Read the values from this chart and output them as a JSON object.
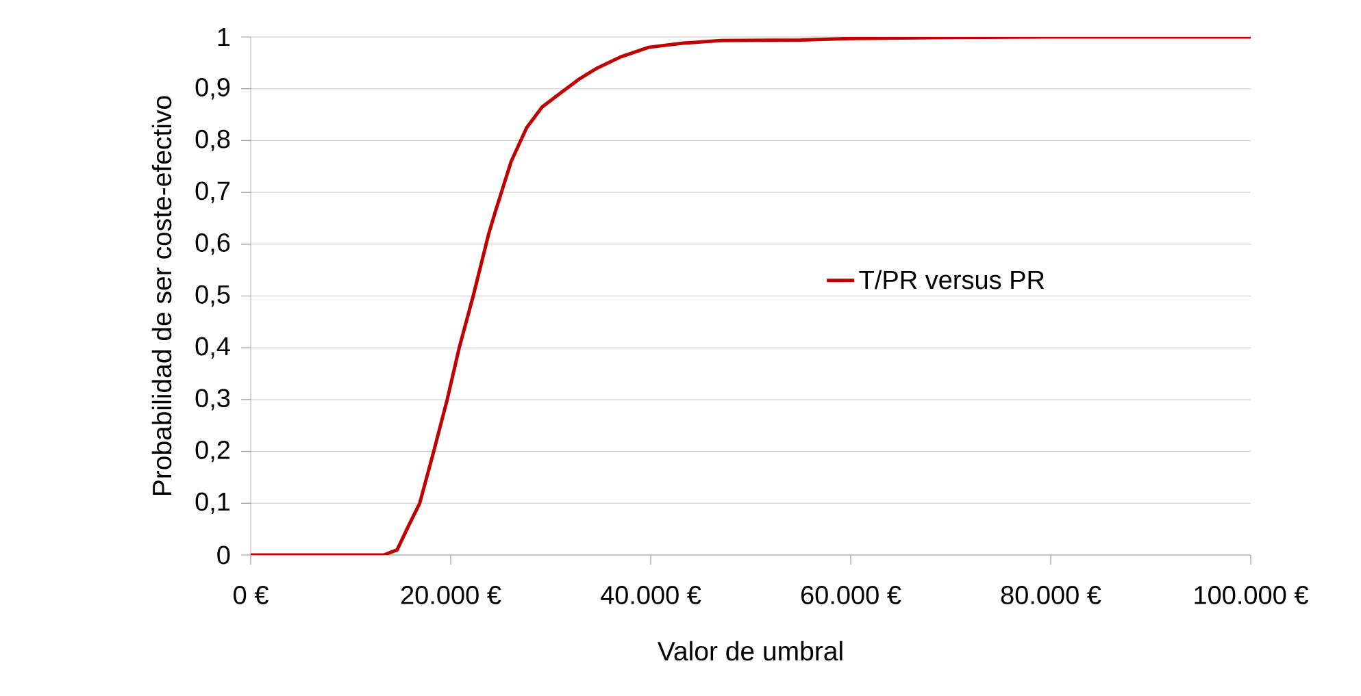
{
  "chart_data": {
    "type": "line",
    "xlabel": "Valor de umbral",
    "ylabel": "Probabilidad de ser coste-efectivo",
    "x": [
      0,
      5000,
      10000,
      13300,
      14650,
      15700,
      16900,
      18300,
      19650,
      20850,
      22250,
      23800,
      24500,
      26050,
      27600,
      29150,
      31200,
      32950,
      34650,
      37050,
      39800,
      43250,
      47000,
      55000,
      60000,
      70000,
      80000,
      100000
    ],
    "series": [
      {
        "name": "T/PR versus PR",
        "color": "#c00000",
        "values": [
          0,
          0,
          0,
          0,
          0.01,
          0.053,
          0.1,
          0.2,
          0.3,
          0.4,
          0.5,
          0.62,
          0.665,
          0.76,
          0.825,
          0.865,
          0.895,
          0.92,
          0.94,
          0.962,
          0.98,
          0.988,
          0.993,
          0.994,
          0.997,
          0.999,
          1,
          1
        ]
      }
    ],
    "xlim": [
      0,
      100000
    ],
    "ylim": [
      0,
      1
    ],
    "xticks": [
      {
        "value": 0,
        "label": "0 €"
      },
      {
        "value": 20000,
        "label": "20.000 €"
      },
      {
        "value": 40000,
        "label": "40.000 €"
      },
      {
        "value": 60000,
        "label": "60.000 €"
      },
      {
        "value": 80000,
        "label": "80.000 €"
      },
      {
        "value": 100000,
        "label": "100.000 €"
      }
    ],
    "yticks": [
      0,
      {
        "value": 0.1,
        "label": "0,1"
      },
      {
        "value": 0.2,
        "label": "0,2"
      },
      {
        "value": 0.3,
        "label": "0,3"
      },
      {
        "value": 0.4,
        "label": "0,4"
      },
      {
        "value": 0.5,
        "label": "0,5"
      },
      {
        "value": 0.6,
        "label": "0,6"
      },
      {
        "value": 0.7,
        "label": "0,7"
      },
      {
        "value": 0.8,
        "label": "0,8"
      },
      {
        "value": 0.9,
        "label": "0,9"
      },
      1
    ],
    "grid": "y",
    "legend": "right",
    "marker": "none",
    "line_style": "solid"
  }
}
